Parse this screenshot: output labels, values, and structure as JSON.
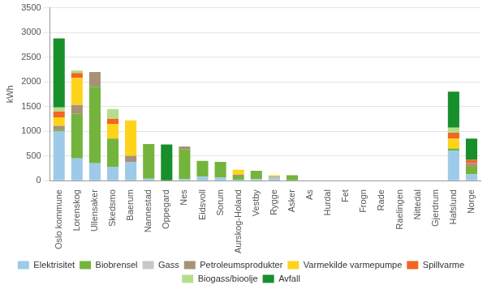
{
  "chart_data": {
    "type": "bar",
    "stacked": true,
    "grid": true,
    "legend": "bottom",
    "y_label": "kWh",
    "ylim": [
      0,
      3500
    ],
    "yticks": [
      0,
      500,
      1000,
      1500,
      2000,
      2500,
      3000,
      3500
    ],
    "categories": [
      "Oslo kommune",
      "Lorenskog",
      "Ullensaker",
      "Skedsmo",
      "Baerum",
      "Nannestad",
      "Oppegard",
      "Nes",
      "Eidsvoll",
      "Sorum",
      "Aurskog-Holand",
      "Vestby",
      "Rygge",
      "Asker",
      "As",
      "Hurdal",
      "Fet",
      "Frogn",
      "Rade",
      "Raelingen",
      "Nittedal",
      "Gjerdrum",
      "Hafslund",
      "Norge"
    ],
    "series": [
      {
        "name": "Elektrisitet",
        "color": "#9ecae9",
        "values": [
          1000,
          450,
          350,
          280,
          380,
          40,
          0,
          30,
          80,
          60,
          20,
          30,
          60,
          0,
          0,
          0,
          0,
          0,
          0,
          0,
          0,
          0,
          600,
          130
        ]
      },
      {
        "name": "Biobrensel",
        "color": "#74b43c",
        "values": [
          30,
          900,
          1550,
          570,
          0,
          700,
          0,
          600,
          320,
          320,
          80,
          170,
          0,
          110,
          0,
          0,
          0,
          0,
          0,
          0,
          0,
          0,
          50,
          150
        ]
      },
      {
        "name": "Gass",
        "color": "#c8c8c8",
        "values": [
          0,
          0,
          0,
          0,
          0,
          0,
          0,
          0,
          0,
          0,
          0,
          0,
          0,
          0,
          0,
          0,
          0,
          0,
          0,
          0,
          0,
          0,
          0,
          0
        ]
      },
      {
        "name": "Petroleumsprodukter",
        "color": "#a89276",
        "values": [
          80,
          180,
          300,
          0,
          120,
          0,
          0,
          60,
          0,
          0,
          20,
          0,
          20,
          0,
          0,
          0,
          0,
          0,
          0,
          0,
          0,
          0,
          0,
          80
        ]
      },
      {
        "name": "Varmekilde varmepumpe",
        "color": "#ffd31a",
        "values": [
          170,
          550,
          0,
          300,
          720,
          0,
          0,
          0,
          0,
          0,
          100,
          0,
          30,
          0,
          0,
          0,
          0,
          0,
          0,
          0,
          0,
          0,
          200,
          0
        ]
      },
      {
        "name": "Spillvarme",
        "color": "#f26522",
        "values": [
          120,
          100,
          0,
          100,
          0,
          0,
          0,
          0,
          0,
          0,
          0,
          0,
          0,
          0,
          0,
          0,
          0,
          0,
          0,
          0,
          0,
          0,
          120,
          60
        ]
      },
      {
        "name": "Biogass/bioolje",
        "color": "#b5de8a",
        "values": [
          80,
          50,
          0,
          200,
          0,
          0,
          0,
          0,
          0,
          0,
          0,
          0,
          0,
          0,
          0,
          0,
          0,
          0,
          0,
          0,
          0,
          0,
          100,
          0
        ]
      },
      {
        "name": "Avfall",
        "color": "#178f2a",
        "values": [
          1400,
          0,
          0,
          0,
          0,
          0,
          730,
          0,
          0,
          0,
          0,
          0,
          0,
          0,
          0,
          0,
          0,
          0,
          0,
          0,
          0,
          0,
          730,
          430
        ]
      }
    ]
  }
}
